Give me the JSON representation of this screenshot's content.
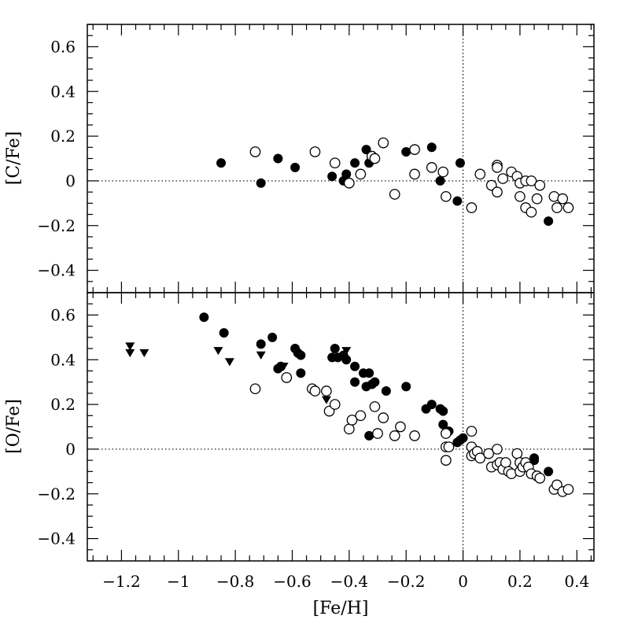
{
  "chart_data": {
    "type": "scatter",
    "xlabel": "[Fe/H]",
    "xlim": [
      -1.32,
      0.46
    ],
    "x_ticks": [
      -1.2,
      -1,
      -0.8,
      -0.6,
      -0.4,
      -0.2,
      0,
      0.2,
      0.4
    ],
    "x_tick_labels": [
      "−1.2",
      "−1",
      "−0.8",
      "−0.6",
      "−0.4",
      "−0.2",
      "0",
      "0.2",
      "0.4"
    ],
    "reference_lines": {
      "x": 0,
      "y": 0
    },
    "panels": [
      {
        "id": "top",
        "ylabel": "[C/Fe]",
        "ylim": [
          -0.5,
          0.7
        ],
        "y_ticks": [
          -0.4,
          -0.2,
          0,
          0.2,
          0.4,
          0.6
        ],
        "y_tick_labels": [
          "−0.4",
          "−0.2",
          "0",
          "0.2",
          "0.4",
          "0.6"
        ],
        "series": [
          {
            "marker": "filled-circle",
            "points": [
              [
                -0.85,
                0.08
              ],
              [
                -0.71,
                -0.01
              ],
              [
                -0.65,
                0.1
              ],
              [
                -0.59,
                0.06
              ],
              [
                -0.46,
                0.02
              ],
              [
                -0.42,
                0.0
              ],
              [
                -0.41,
                0.03
              ],
              [
                -0.38,
                0.08
              ],
              [
                -0.34,
                0.14
              ],
              [
                -0.33,
                0.08
              ],
              [
                -0.2,
                0.13
              ],
              [
                -0.11,
                0.15
              ],
              [
                -0.08,
                0.0
              ],
              [
                -0.02,
                -0.09
              ],
              [
                -0.01,
                0.08
              ],
              [
                0.3,
                -0.18
              ]
            ]
          },
          {
            "marker": "open-circle",
            "points": [
              [
                -0.73,
                0.13
              ],
              [
                -0.52,
                0.13
              ],
              [
                -0.45,
                0.08
              ],
              [
                -0.4,
                -0.01
              ],
              [
                -0.36,
                0.03
              ],
              [
                -0.32,
                0.11
              ],
              [
                -0.31,
                0.1
              ],
              [
                -0.28,
                0.17
              ],
              [
                -0.24,
                -0.06
              ],
              [
                -0.17,
                0.14
              ],
              [
                -0.17,
                0.03
              ],
              [
                -0.11,
                0.06
              ],
              [
                -0.07,
                0.04
              ],
              [
                -0.06,
                -0.07
              ],
              [
                0.03,
                -0.12
              ],
              [
                0.06,
                0.03
              ],
              [
                0.1,
                -0.02
              ],
              [
                0.12,
                0.07
              ],
              [
                0.12,
                0.06
              ],
              [
                0.12,
                -0.05
              ],
              [
                0.14,
                0.01
              ],
              [
                0.17,
                0.04
              ],
              [
                0.19,
                0.02
              ],
              [
                0.2,
                -0.01
              ],
              [
                0.2,
                -0.07
              ],
              [
                0.22,
                -0.12
              ],
              [
                0.22,
                0.0
              ],
              [
                0.24,
                0.0
              ],
              [
                0.24,
                -0.14
              ],
              [
                0.26,
                -0.08
              ],
              [
                0.27,
                -0.02
              ],
              [
                0.32,
                -0.07
              ],
              [
                0.33,
                -0.12
              ],
              [
                0.35,
                -0.08
              ],
              [
                0.37,
                -0.12
              ]
            ]
          }
        ]
      },
      {
        "id": "bottom",
        "ylabel": "[O/Fe]",
        "ylim": [
          -0.5,
          0.7
        ],
        "y_ticks": [
          -0.4,
          -0.2,
          0,
          0.2,
          0.4,
          0.6
        ],
        "y_tick_labels": [
          "−0.4",
          "−0.2",
          "0",
          "0.2",
          "0.4",
          "0.6"
        ],
        "series": [
          {
            "marker": "filled-triangle-down",
            "points": [
              [
                -1.17,
                0.46
              ],
              [
                -1.17,
                0.43
              ],
              [
                -1.12,
                0.43
              ],
              [
                -0.86,
                0.44
              ],
              [
                -0.82,
                0.39
              ],
              [
                -0.71,
                0.42
              ],
              [
                -0.63,
                0.37
              ],
              [
                -0.48,
                0.22
              ],
              [
                -0.41,
                0.44
              ]
            ]
          },
          {
            "marker": "filled-circle",
            "points": [
              [
                -0.91,
                0.59
              ],
              [
                -0.84,
                0.52
              ],
              [
                -0.71,
                0.47
              ],
              [
                -0.67,
                0.5
              ],
              [
                -0.65,
                0.36
              ],
              [
                -0.64,
                0.37
              ],
              [
                -0.59,
                0.45
              ],
              [
                -0.58,
                0.43
              ],
              [
                -0.57,
                0.42
              ],
              [
                -0.57,
                0.34
              ],
              [
                -0.46,
                0.41
              ],
              [
                -0.45,
                0.45
              ],
              [
                -0.44,
                0.41
              ],
              [
                -0.42,
                0.42
              ],
              [
                -0.41,
                0.4
              ],
              [
                -0.38,
                0.37
              ],
              [
                -0.38,
                0.3
              ],
              [
                -0.35,
                0.34
              ],
              [
                -0.33,
                0.34
              ],
              [
                -0.34,
                0.28
              ],
              [
                -0.31,
                0.3
              ],
              [
                -0.32,
                0.29
              ],
              [
                -0.33,
                0.06
              ],
              [
                -0.27,
                0.26
              ],
              [
                -0.2,
                0.28
              ],
              [
                -0.13,
                0.18
              ],
              [
                -0.11,
                0.2
              ],
              [
                -0.08,
                0.18
              ],
              [
                -0.07,
                0.17
              ],
              [
                -0.07,
                0.11
              ],
              [
                -0.05,
                0.08
              ],
              [
                -0.02,
                0.03
              ],
              [
                -0.01,
                0.04
              ],
              [
                0.0,
                0.05
              ],
              [
                0.25,
                -0.04
              ],
              [
                0.25,
                -0.05
              ],
              [
                0.3,
                -0.1
              ]
            ]
          },
          {
            "marker": "open-circle",
            "points": [
              [
                -0.73,
                0.27
              ],
              [
                -0.62,
                0.32
              ],
              [
                -0.53,
                0.27
              ],
              [
                -0.52,
                0.26
              ],
              [
                -0.48,
                0.26
              ],
              [
                -0.47,
                0.17
              ],
              [
                -0.45,
                0.2
              ],
              [
                -0.4,
                0.09
              ],
              [
                -0.39,
                0.13
              ],
              [
                -0.36,
                0.15
              ],
              [
                -0.31,
                0.19
              ],
              [
                -0.3,
                0.07
              ],
              [
                -0.28,
                0.14
              ],
              [
                -0.24,
                0.06
              ],
              [
                -0.22,
                0.1
              ],
              [
                -0.17,
                0.06
              ],
              [
                -0.06,
                0.07
              ],
              [
                -0.06,
                0.01
              ],
              [
                -0.05,
                0.01
              ],
              [
                -0.06,
                -0.05
              ],
              [
                0.03,
                0.08
              ],
              [
                0.03,
                0.01
              ],
              [
                0.03,
                -0.03
              ],
              [
                0.04,
                -0.02
              ],
              [
                0.05,
                -0.01
              ],
              [
                0.06,
                -0.04
              ],
              [
                0.09,
                -0.02
              ],
              [
                0.1,
                -0.08
              ],
              [
                0.12,
                0.0
              ],
              [
                0.12,
                -0.07
              ],
              [
                0.13,
                -0.06
              ],
              [
                0.14,
                -0.09
              ],
              [
                0.15,
                -0.06
              ],
              [
                0.16,
                -0.1
              ],
              [
                0.17,
                -0.11
              ],
              [
                0.19,
                -0.02
              ],
              [
                0.2,
                -0.06
              ],
              [
                0.2,
                -0.1
              ],
              [
                0.21,
                -0.08
              ],
              [
                0.22,
                -0.06
              ],
              [
                0.23,
                -0.08
              ],
              [
                0.24,
                -0.11
              ],
              [
                0.26,
                -0.12
              ],
              [
                0.27,
                -0.13
              ],
              [
                0.32,
                -0.18
              ],
              [
                0.33,
                -0.16
              ],
              [
                0.35,
                -0.19
              ],
              [
                0.37,
                -0.18
              ]
            ]
          }
        ]
      }
    ]
  }
}
